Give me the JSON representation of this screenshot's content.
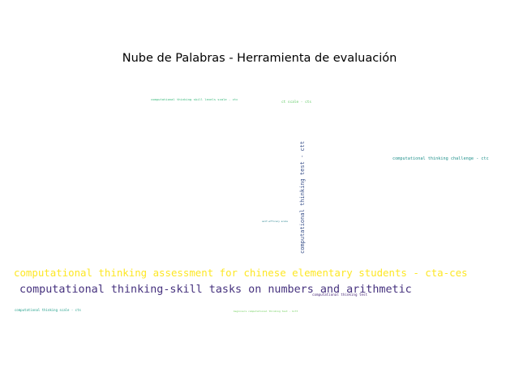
{
  "chart_data": {
    "type": "wordcloud",
    "title": "Nube de Palabras - Herramienta de evaluación",
    "words": [
      {
        "text": "computational thinking assessment for chinese elementary students - cta-ces",
        "weight": 1.0,
        "color": "#fde725",
        "orientation": "horizontal"
      },
      {
        "text": "computational thinking-skill tasks on numbers and arithmetic",
        "weight": 0.95,
        "color": "#46327e",
        "orientation": "horizontal"
      },
      {
        "text": "computational thinking test - ctt",
        "weight": 0.55,
        "color": "#3b528b",
        "orientation": "vertical"
      },
      {
        "text": "computational thinking challenge - ctc",
        "weight": 0.45,
        "color": "#21918c",
        "orientation": "horizontal"
      },
      {
        "text": "ct scale - cts",
        "weight": 0.4,
        "color": "#5ec962",
        "orientation": "horizontal"
      },
      {
        "text": "computational thinking test",
        "weight": 0.38,
        "color": "#482878",
        "orientation": "horizontal"
      },
      {
        "text": "computational thinking scale - cts",
        "weight": 0.36,
        "color": "#1f9e89",
        "orientation": "horizontal"
      },
      {
        "text": "computational thinking skill levels scale - ctc",
        "weight": 0.33,
        "color": "#35b779",
        "orientation": "horizontal"
      },
      {
        "text": "beginners computational thinking test - bctt",
        "weight": 0.28,
        "color": "#6ece58",
        "orientation": "horizontal"
      },
      {
        "text": "self-efficacy scale",
        "weight": 0.25,
        "color": "#26828e",
        "orientation": "horizontal"
      }
    ]
  }
}
